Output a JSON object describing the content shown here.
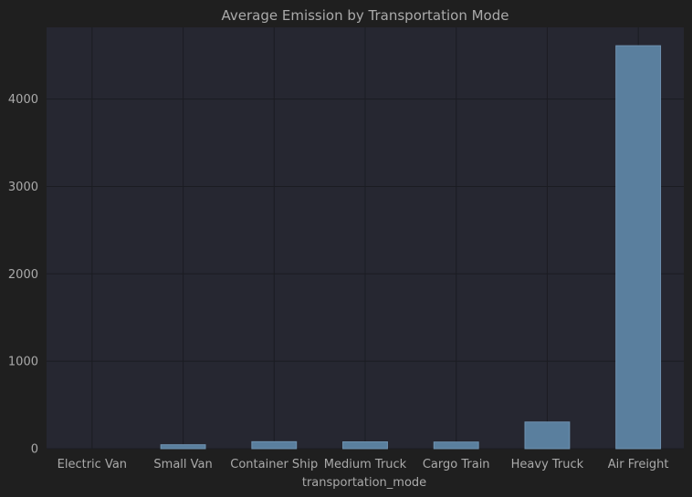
{
  "chart_data": {
    "type": "bar",
    "title": "Average Emission by Transportation Mode",
    "xlabel": "transportation_mode",
    "ylabel": "",
    "categories": [
      "Electric Van",
      "Small Van",
      "Container Ship",
      "Medium Truck",
      "Cargo Train",
      "Heavy Truck",
      "Air Freight"
    ],
    "values": [
      0,
      45,
      80,
      78,
      76,
      305,
      4610
    ],
    "ylim": [
      0,
      4820
    ],
    "yticks": [
      0,
      1000,
      2000,
      3000,
      4000
    ],
    "grid": true,
    "legend": "none",
    "colors": {
      "background": "#1f1f1f",
      "plot_background": "#262731",
      "bar_fill": "#5a7f9e",
      "bar_edge": "#6f93b1",
      "grid": "#1b1c22",
      "text": "#aaaaaa",
      "title": "#aaaaaa"
    }
  }
}
